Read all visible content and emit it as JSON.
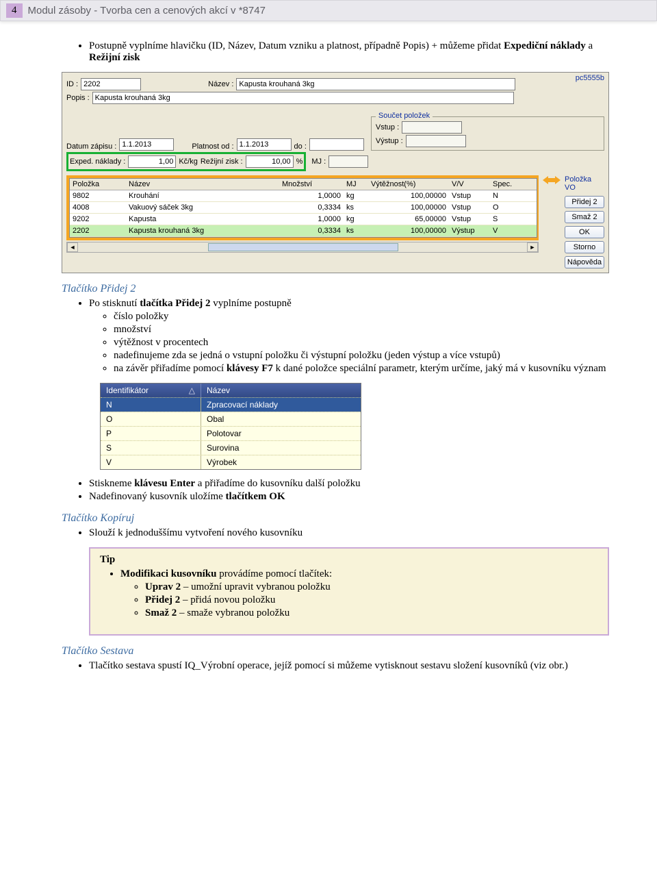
{
  "header": {
    "page_number": "4",
    "title": "Modul zásoby - Tvorba cen a cenových akcí v *8747"
  },
  "intro": {
    "line": "Postupně vyplníme hlavičku (ID, Název, Datum vzniku a platnost, případně Popis) + můžeme přidat ",
    "b1": "Expediční náklady",
    "mid": " a ",
    "b2": "Režijní zisk"
  },
  "app": {
    "pc": "pc5555b",
    "id_label": "ID :",
    "id_value": "2202",
    "nazev_label": "Název :",
    "nazev_value": "Kapusta krouhaná 3kg",
    "popis_label": "Popis :",
    "popis_value": "Kapusta krouhaná 3kg",
    "datum_label": "Datum zápisu :",
    "datum_value": "1.1.2013",
    "platnost_label": "Platnost od :",
    "platnost_value": "1.1.2013",
    "do_label": "do :",
    "soucet_title": "Součet položek",
    "vstup_label": "Vstup :",
    "vystup_label": "Výstup :",
    "exped_label": "Exped. náklady :",
    "exped_value": "1,00",
    "kc_label": "Kč/kg",
    "rezijni_label": "Režijní zisk :",
    "rezijni_value": "10,00",
    "pct_label": "%",
    "mj_label": "MJ :",
    "grid": {
      "columns": [
        "Položka",
        "Název",
        "Množství",
        "MJ",
        "Výtěžnost(%)",
        "V/V",
        "Spec."
      ],
      "rows": [
        {
          "pol": "9802",
          "naz": "Krouhání",
          "mno": "1,0000",
          "mj": "kg",
          "vyt": "100,00000",
          "vv": "Vstup",
          "spec": "N"
        },
        {
          "pol": "4008",
          "naz": "Vakuový sáček 3kg",
          "mno": "0,3334",
          "mj": "ks",
          "vyt": "100,00000",
          "vv": "Vstup",
          "spec": "O"
        },
        {
          "pol": "9202",
          "naz": "Kapusta",
          "mno": "1,0000",
          "mj": "kg",
          "vyt": "65,00000",
          "vv": "Vstup",
          "spec": "S"
        },
        {
          "pol": "2202",
          "naz": "Kapusta krouhaná 3kg",
          "mno": "0,3334",
          "mj": "ks",
          "vyt": "100,00000",
          "vv": "Výstup",
          "spec": "V",
          "out": true
        }
      ]
    },
    "side": {
      "title": "Položka VO",
      "btns": [
        "Přidej 2",
        "Smaž 2",
        "OK",
        "Storno",
        "Nápověda"
      ]
    },
    "arrow_color": "#f5a623"
  },
  "sec_pridej_title": "Tlačítko Přidej 2",
  "sec_pridej": {
    "lead_a": "Po stisknutí ",
    "lead_b": "tlačítka Přidej 2",
    "lead_c": " vyplníme postupně",
    "items": [
      "číslo položky",
      "množství",
      "výtěžnost v procentech",
      "nadefinujeme zda se jedná o vstupní položku či výstupní položku (jeden výstup a více vstupů)"
    ],
    "last_a": "na závěr přiřadíme pomocí ",
    "last_b": "klávesy F7",
    "last_c": " k dané položce speciální parametr, kterým určíme, jaký má v kusovníku význam"
  },
  "ident": {
    "head": [
      "Identifikátor",
      "Název"
    ],
    "sort_icon": "△",
    "rows": [
      {
        "id": "N",
        "name": "Zpracovací náklady",
        "sel": true
      },
      {
        "id": "O",
        "name": "Obal"
      },
      {
        "id": "P",
        "name": "Polotovar"
      },
      {
        "id": "S",
        "name": "Surovina"
      },
      {
        "id": "V",
        "name": "Výrobek"
      }
    ]
  },
  "after_ident": {
    "b1_a": "Stiskneme ",
    "b1_b": "klávesu Enter",
    "b1_c": " a přiřadíme do kusovníku další položku",
    "b2_a": "Nadefinovaný kusovník uložíme ",
    "b2_b": "tlačítkem OK"
  },
  "sec_kopiruj_title": "Tlačítko Kopíruj",
  "sec_kopiruj_b1": "Slouží k jednoduššímu vytvoření nového kusovníku",
  "tip": {
    "title": "Tip",
    "lead_b": "Modifikaci kusovníku",
    "lead_c": " provádíme pomocí tlačítek:",
    "l1_b": "Uprav 2",
    "l1_c": " – umožní upravit vybranou položku",
    "l2_b": "Přidej 2",
    "l2_c": " – přidá novou položku",
    "l3_b": "Smaž 2",
    "l3_c": " –   smaže vybranou položku"
  },
  "sec_sestava_title": "Tlačítko Sestava",
  "sec_sestava_b1": "Tlačítko sestava spustí IQ_Výrobní operace, jejíž pomocí si můžeme vytisknout sestavu složení kusovníků (viz obr.)"
}
